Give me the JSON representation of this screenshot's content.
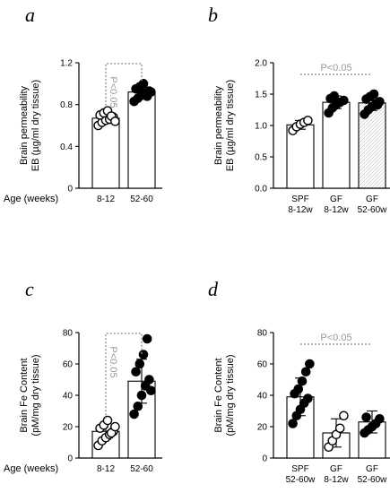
{
  "colors": {
    "sig": "#999999",
    "bar_fill": "#ffffff",
    "dot_filled": "#000000"
  },
  "chart_data": [
    {
      "panel": "a",
      "type": "bar",
      "ylabel": [
        "Brain permeability",
        "EB (µg/ml dry tissue)"
      ],
      "ylim": [
        0,
        1.2
      ],
      "yticks": [
        "0",
        "0.4",
        "0.8",
        "1.2"
      ],
      "row_label": "Age (weeks)",
      "categories": [
        [
          "8-12"
        ],
        [
          "52-60"
        ]
      ],
      "values": [
        0.67,
        0.92
      ],
      "errors": [
        0.05,
        0.07
      ],
      "filled": [
        false,
        true
      ],
      "hatched": [
        false,
        false
      ],
      "points": [
        [
          0.6,
          0.63,
          0.65,
          0.66,
          0.68,
          0.7,
          0.72,
          0.74,
          0.69,
          0.64
        ],
        [
          0.83,
          0.86,
          0.89,
          0.91,
          0.93,
          0.95,
          0.97,
          1.0,
          0.88,
          0.92
        ]
      ],
      "sig_text": "P<0.05",
      "sig_vertical": true
    },
    {
      "panel": "b",
      "type": "bar",
      "ylabel": [
        "Brain permeability",
        "EB (µg/ml dry tissue)"
      ],
      "ylim": [
        0,
        2.0
      ],
      "yticks": [
        "0.0",
        "0.5",
        "1.0",
        "1.5",
        "2.0"
      ],
      "row_label": "",
      "categories": [
        [
          "SPF",
          "8-12w"
        ],
        [
          "GF",
          "8-12w"
        ],
        [
          "GF",
          "52-60w"
        ]
      ],
      "values": [
        1.01,
        1.37,
        1.36
      ],
      "errors": [
        0.07,
        0.1,
        0.12
      ],
      "filled": [
        false,
        true,
        true
      ],
      "hatched": [
        false,
        false,
        true
      ],
      "points": [
        [
          0.92,
          0.98,
          1.02,
          1.05,
          1.08
        ],
        [
          1.2,
          1.28,
          1.33,
          1.37,
          1.4,
          1.43,
          1.47
        ],
        [
          1.18,
          1.25,
          1.3,
          1.35,
          1.38,
          1.42,
          1.46,
          1.5,
          1.33
        ]
      ],
      "sig_text": "P<0.05",
      "sig_vertical": false
    },
    {
      "panel": "c",
      "type": "bar",
      "ylabel": [
        "Brain Fe Content",
        "(pM/mg dry tissue)"
      ],
      "ylim": [
        0,
        80
      ],
      "yticks": [
        "0",
        "20",
        "40",
        "60",
        "80"
      ],
      "row_label": "Age (weeks)",
      "categories": [
        [
          "8-12"
        ],
        [
          "52-60"
        ]
      ],
      "values": [
        17,
        49
      ],
      "errors": [
        5,
        14
      ],
      "filled": [
        false,
        true
      ],
      "hatched": [
        false,
        false
      ],
      "points": [
        [
          8,
          11,
          13,
          15,
          17,
          19,
          21,
          24,
          16,
          20
        ],
        [
          28,
          33,
          40,
          46,
          50,
          55,
          60,
          66,
          76,
          43
        ]
      ],
      "sig_text": "P<0.05",
      "sig_vertical": true
    },
    {
      "panel": "d",
      "type": "bar",
      "ylabel": [
        "Brain Fe Content",
        "(pM/mg dry tissue)"
      ],
      "ylim": [
        0,
        80
      ],
      "yticks": [
        "0",
        "20",
        "40",
        "60",
        "80"
      ],
      "row_label": "",
      "categories": [
        [
          "SPF",
          "52-60w"
        ],
        [
          "GF",
          "8-12w"
        ],
        [
          "GF",
          "52-60w"
        ]
      ],
      "values": [
        39,
        16,
        23
      ],
      "errors": [
        12,
        9,
        7
      ],
      "filled": [
        true,
        false,
        true
      ],
      "hatched": [
        false,
        false,
        false
      ],
      "points": [
        [
          22,
          27,
          31,
          35,
          38,
          41,
          44,
          49,
          55,
          60
        ],
        [
          7,
          11,
          15,
          19,
          27
        ],
        [
          16,
          18,
          20,
          22,
          25,
          26
        ]
      ],
      "sig_text": "P<0.05",
      "sig_vertical": false
    }
  ]
}
